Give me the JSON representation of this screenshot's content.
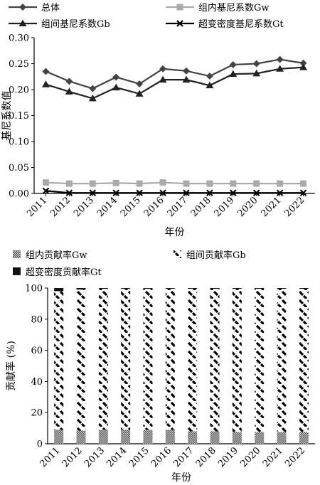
{
  "chart_data": [
    {
      "type": "line",
      "ylabel": "基尼系数值",
      "xlabel": "年份",
      "x": [
        "2011",
        "2012",
        "2013",
        "2014",
        "2015",
        "2016",
        "2017",
        "2018",
        "2019",
        "2020",
        "2021",
        "2022"
      ],
      "ylim": [
        0,
        0.3
      ],
      "yticks": [
        "0.00",
        "0.05",
        "0.10",
        "0.15",
        "0.20",
        "0.25",
        "0.30"
      ],
      "legend_position": "top",
      "series": [
        {
          "name": "总体",
          "marker": "diamond",
          "color": "#444444",
          "values": [
            0.235,
            0.216,
            0.202,
            0.224,
            0.211,
            0.24,
            0.236,
            0.226,
            0.248,
            0.25,
            0.258,
            0.251
          ]
        },
        {
          "name": "组内基尼系数Gw",
          "marker": "square",
          "color": "#aaaaaa",
          "values": [
            0.021,
            0.019,
            0.019,
            0.02,
            0.019,
            0.021,
            0.019,
            0.019,
            0.019,
            0.019,
            0.019,
            0.019
          ]
        },
        {
          "name": "组间基尼系数Gb",
          "marker": "triangle",
          "color": "#222222",
          "values": [
            0.21,
            0.196,
            0.183,
            0.204,
            0.192,
            0.219,
            0.219,
            0.208,
            0.23,
            0.231,
            0.24,
            0.243
          ]
        },
        {
          "name": "超变密度基尼系数Gt",
          "marker": "x",
          "color": "#000000",
          "values": [
            0.005,
            0.001,
            0.001,
            0.001,
            0.001,
            0.001,
            0.001,
            0.001,
            0.001,
            0.001,
            0.001,
            0.001
          ]
        }
      ]
    },
    {
      "type": "bar",
      "stacked": true,
      "ylabel": "贡献率 (%)",
      "xlabel": "年份",
      "categories": [
        "2011",
        "2012",
        "2013",
        "2014",
        "2015",
        "2016",
        "2017",
        "2018",
        "2019",
        "2020",
        "2021",
        "2022"
      ],
      "ylim": [
        0,
        100
      ],
      "yticks": [
        "0",
        "20",
        "40",
        "60",
        "80",
        "100"
      ],
      "legend_position": "top",
      "series": [
        {
          "name": "组内贡献率Gw",
          "pattern": "crosshatch",
          "values": [
            9.0,
            8.5,
            9.0,
            9.0,
            9.0,
            9.0,
            8.0,
            8.0,
            7.5,
            7.5,
            7.5,
            7.5
          ]
        },
        {
          "name": "组间贡献率Gb",
          "pattern": "diagonal-dashes",
          "values": [
            89.0,
            90.5,
            90.5,
            90.5,
            90.5,
            90.5,
            91.5,
            91.5,
            92.0,
            92.0,
            92.0,
            92.0
          ]
        },
        {
          "name": "超变密度贡献率Gt",
          "pattern": "solid-dark",
          "values": [
            2.0,
            1.0,
            0.5,
            0.5,
            0.5,
            0.5,
            0.5,
            0.5,
            0.5,
            0.5,
            0.5,
            0.5
          ]
        }
      ]
    }
  ]
}
